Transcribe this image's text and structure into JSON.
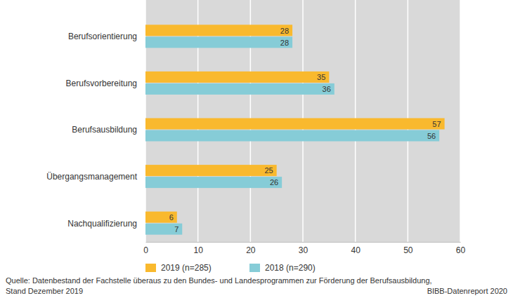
{
  "chart_data": {
    "type": "bar",
    "orientation": "horizontal",
    "categories": [
      "Berufsorientierung",
      "Berufsvorbereitung",
      "Berufsausbildung",
      "Übergangsmanagement",
      "Nachqualifizierung"
    ],
    "series": [
      {
        "name": "2019 (n=285)",
        "color": "#f9b92e",
        "values": [
          28,
          35,
          57,
          25,
          6
        ]
      },
      {
        "name": "2018 (n=290)",
        "color": "#86ccd7",
        "values": [
          28,
          36,
          56,
          26,
          7
        ]
      }
    ],
    "xlim": [
      0,
      60
    ],
    "xticks": [
      0,
      10,
      20,
      30,
      40,
      50,
      60
    ],
    "grid": true,
    "data_labels": true,
    "legend": "bottom-left",
    "source": [
      "Quelle: Datenbestand der Fachstelle überaus zu den Bundes- und Landesprogrammen zur Förderung der Berufsausbildung,",
      "Stand Dezember 2019"
    ],
    "credit": "BIBB-Datenreport 2020"
  }
}
